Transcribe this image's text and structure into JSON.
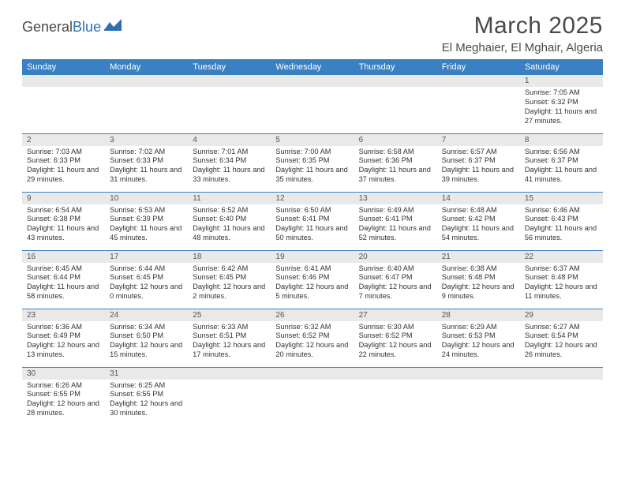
{
  "logo": {
    "text1": "General",
    "text2": "Blue"
  },
  "title": "March 2025",
  "location": "El Meghaier, El Mghair, Algeria",
  "colors": {
    "header_bg": "#3a80c2",
    "header_text": "#ffffff",
    "daynum_bg": "#e9e9e9",
    "border": "#3a80c2",
    "text": "#333333",
    "logo_gray": "#4a4a4a",
    "logo_blue": "#2f6fb0"
  },
  "typography": {
    "title_fontsize": 30,
    "location_fontsize": 15,
    "weekday_fontsize": 11,
    "daynum_fontsize": 10,
    "body_fontsize": 9.2
  },
  "weekdays": [
    "Sunday",
    "Monday",
    "Tuesday",
    "Wednesday",
    "Thursday",
    "Friday",
    "Saturday"
  ],
  "weeks": [
    [
      null,
      null,
      null,
      null,
      null,
      null,
      {
        "n": "1",
        "sunrise": "Sunrise: 7:05 AM",
        "sunset": "Sunset: 6:32 PM",
        "daylight": "Daylight: 11 hours and 27 minutes."
      }
    ],
    [
      {
        "n": "2",
        "sunrise": "Sunrise: 7:03 AM",
        "sunset": "Sunset: 6:33 PM",
        "daylight": "Daylight: 11 hours and 29 minutes."
      },
      {
        "n": "3",
        "sunrise": "Sunrise: 7:02 AM",
        "sunset": "Sunset: 6:33 PM",
        "daylight": "Daylight: 11 hours and 31 minutes."
      },
      {
        "n": "4",
        "sunrise": "Sunrise: 7:01 AM",
        "sunset": "Sunset: 6:34 PM",
        "daylight": "Daylight: 11 hours and 33 minutes."
      },
      {
        "n": "5",
        "sunrise": "Sunrise: 7:00 AM",
        "sunset": "Sunset: 6:35 PM",
        "daylight": "Daylight: 11 hours and 35 minutes."
      },
      {
        "n": "6",
        "sunrise": "Sunrise: 6:58 AM",
        "sunset": "Sunset: 6:36 PM",
        "daylight": "Daylight: 11 hours and 37 minutes."
      },
      {
        "n": "7",
        "sunrise": "Sunrise: 6:57 AM",
        "sunset": "Sunset: 6:37 PM",
        "daylight": "Daylight: 11 hours and 39 minutes."
      },
      {
        "n": "8",
        "sunrise": "Sunrise: 6:56 AM",
        "sunset": "Sunset: 6:37 PM",
        "daylight": "Daylight: 11 hours and 41 minutes."
      }
    ],
    [
      {
        "n": "9",
        "sunrise": "Sunrise: 6:54 AM",
        "sunset": "Sunset: 6:38 PM",
        "daylight": "Daylight: 11 hours and 43 minutes."
      },
      {
        "n": "10",
        "sunrise": "Sunrise: 6:53 AM",
        "sunset": "Sunset: 6:39 PM",
        "daylight": "Daylight: 11 hours and 45 minutes."
      },
      {
        "n": "11",
        "sunrise": "Sunrise: 6:52 AM",
        "sunset": "Sunset: 6:40 PM",
        "daylight": "Daylight: 11 hours and 48 minutes."
      },
      {
        "n": "12",
        "sunrise": "Sunrise: 6:50 AM",
        "sunset": "Sunset: 6:41 PM",
        "daylight": "Daylight: 11 hours and 50 minutes."
      },
      {
        "n": "13",
        "sunrise": "Sunrise: 6:49 AM",
        "sunset": "Sunset: 6:41 PM",
        "daylight": "Daylight: 11 hours and 52 minutes."
      },
      {
        "n": "14",
        "sunrise": "Sunrise: 6:48 AM",
        "sunset": "Sunset: 6:42 PM",
        "daylight": "Daylight: 11 hours and 54 minutes."
      },
      {
        "n": "15",
        "sunrise": "Sunrise: 6:46 AM",
        "sunset": "Sunset: 6:43 PM",
        "daylight": "Daylight: 11 hours and 56 minutes."
      }
    ],
    [
      {
        "n": "16",
        "sunrise": "Sunrise: 6:45 AM",
        "sunset": "Sunset: 6:44 PM",
        "daylight": "Daylight: 11 hours and 58 minutes."
      },
      {
        "n": "17",
        "sunrise": "Sunrise: 6:44 AM",
        "sunset": "Sunset: 6:45 PM",
        "daylight": "Daylight: 12 hours and 0 minutes."
      },
      {
        "n": "18",
        "sunrise": "Sunrise: 6:42 AM",
        "sunset": "Sunset: 6:45 PM",
        "daylight": "Daylight: 12 hours and 2 minutes."
      },
      {
        "n": "19",
        "sunrise": "Sunrise: 6:41 AM",
        "sunset": "Sunset: 6:46 PM",
        "daylight": "Daylight: 12 hours and 5 minutes."
      },
      {
        "n": "20",
        "sunrise": "Sunrise: 6:40 AM",
        "sunset": "Sunset: 6:47 PM",
        "daylight": "Daylight: 12 hours and 7 minutes."
      },
      {
        "n": "21",
        "sunrise": "Sunrise: 6:38 AM",
        "sunset": "Sunset: 6:48 PM",
        "daylight": "Daylight: 12 hours and 9 minutes."
      },
      {
        "n": "22",
        "sunrise": "Sunrise: 6:37 AM",
        "sunset": "Sunset: 6:48 PM",
        "daylight": "Daylight: 12 hours and 11 minutes."
      }
    ],
    [
      {
        "n": "23",
        "sunrise": "Sunrise: 6:36 AM",
        "sunset": "Sunset: 6:49 PM",
        "daylight": "Daylight: 12 hours and 13 minutes."
      },
      {
        "n": "24",
        "sunrise": "Sunrise: 6:34 AM",
        "sunset": "Sunset: 6:50 PM",
        "daylight": "Daylight: 12 hours and 15 minutes."
      },
      {
        "n": "25",
        "sunrise": "Sunrise: 6:33 AM",
        "sunset": "Sunset: 6:51 PM",
        "daylight": "Daylight: 12 hours and 17 minutes."
      },
      {
        "n": "26",
        "sunrise": "Sunrise: 6:32 AM",
        "sunset": "Sunset: 6:52 PM",
        "daylight": "Daylight: 12 hours and 20 minutes."
      },
      {
        "n": "27",
        "sunrise": "Sunrise: 6:30 AM",
        "sunset": "Sunset: 6:52 PM",
        "daylight": "Daylight: 12 hours and 22 minutes."
      },
      {
        "n": "28",
        "sunrise": "Sunrise: 6:29 AM",
        "sunset": "Sunset: 6:53 PM",
        "daylight": "Daylight: 12 hours and 24 minutes."
      },
      {
        "n": "29",
        "sunrise": "Sunrise: 6:27 AM",
        "sunset": "Sunset: 6:54 PM",
        "daylight": "Daylight: 12 hours and 26 minutes."
      }
    ],
    [
      {
        "n": "30",
        "sunrise": "Sunrise: 6:26 AM",
        "sunset": "Sunset: 6:55 PM",
        "daylight": "Daylight: 12 hours and 28 minutes."
      },
      {
        "n": "31",
        "sunrise": "Sunrise: 6:25 AM",
        "sunset": "Sunset: 6:55 PM",
        "daylight": "Daylight: 12 hours and 30 minutes."
      },
      null,
      null,
      null,
      null,
      null
    ]
  ]
}
